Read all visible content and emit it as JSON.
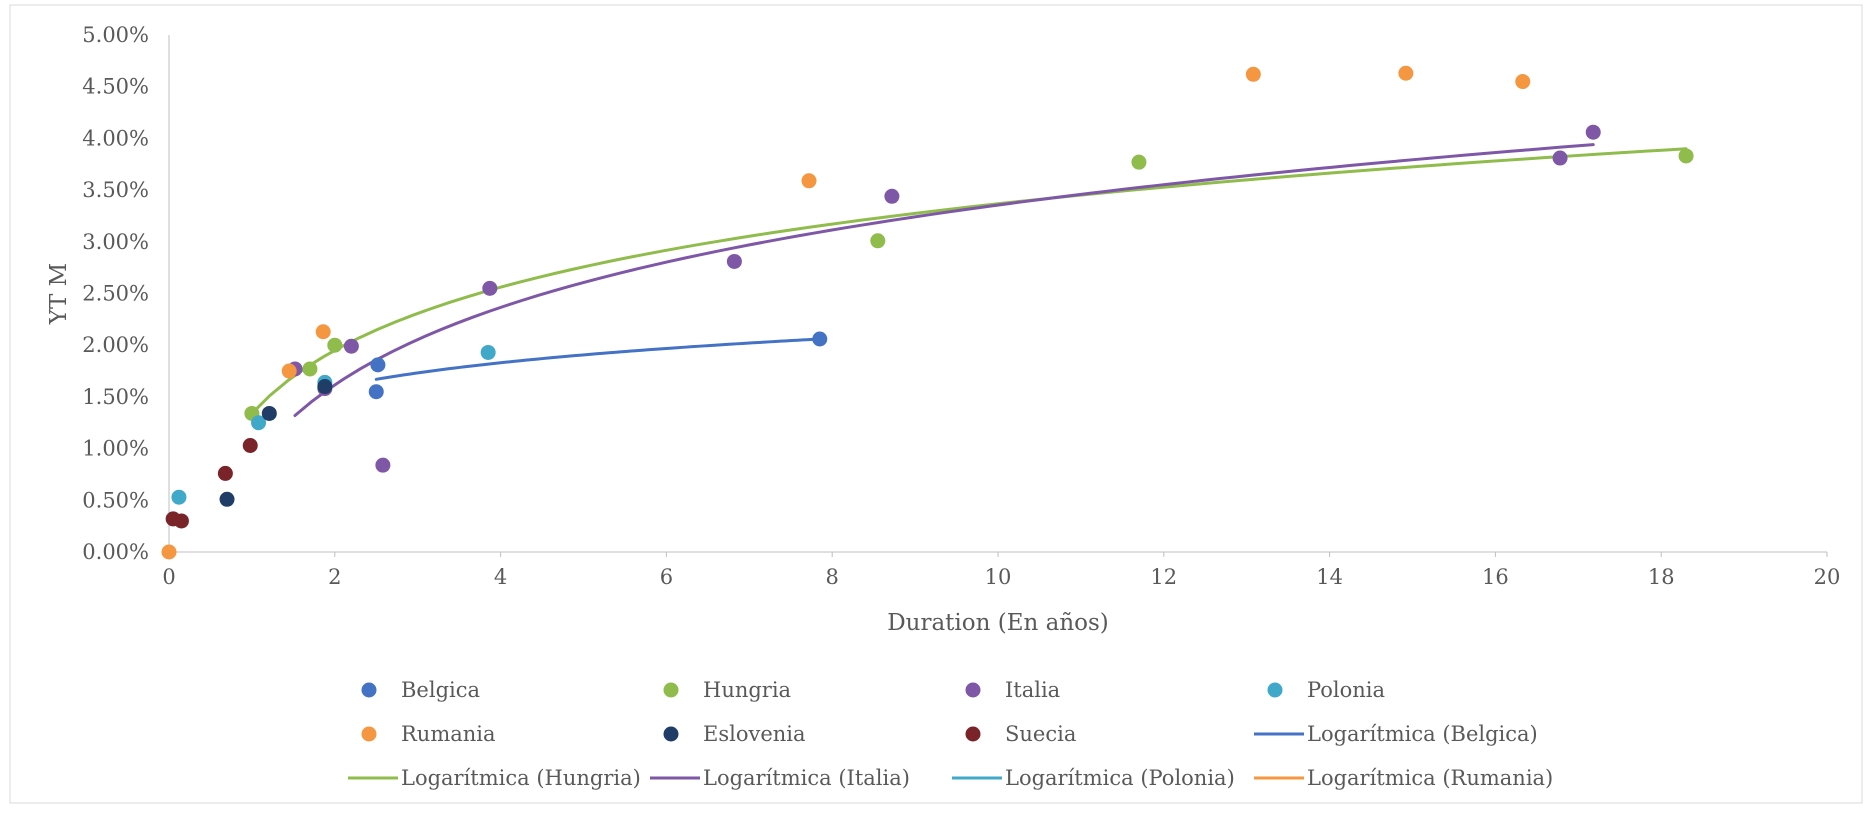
{
  "chart_data": {
    "type": "scatter",
    "xlabel": "Duration (En años)",
    "ylabel": "YT M",
    "xlim": [
      0,
      20
    ],
    "ylim": [
      0,
      0.05
    ],
    "x_ticks": [
      "0",
      "2",
      "4",
      "6",
      "8",
      "10",
      "12",
      "14",
      "16",
      "18",
      "20"
    ],
    "y_ticks": [
      "0.00%",
      "0.50%",
      "1.00%",
      "1.50%",
      "2.00%",
      "2.50%",
      "3.00%",
      "3.50%",
      "4.00%",
      "4.50%",
      "5.00%"
    ],
    "grid": false,
    "legend_position": "bottom",
    "series": [
      {
        "name": "Belgica",
        "color": "#4472C4",
        "points": [
          [
            2.5,
            0.0155
          ],
          [
            2.52,
            0.0181
          ],
          [
            7.85,
            0.0206
          ]
        ]
      },
      {
        "name": "Hungria",
        "color": "#8FBC4B",
        "points": [
          [
            1.0,
            0.0134
          ],
          [
            1.7,
            0.0177
          ],
          [
            2.0,
            0.02
          ],
          [
            8.55,
            0.0301
          ],
          [
            11.7,
            0.0377
          ],
          [
            18.3,
            0.0383
          ]
        ]
      },
      {
        "name": "Italia",
        "color": "#7E57A6",
        "points": [
          [
            1.52,
            0.0177
          ],
          [
            1.88,
            0.0158
          ],
          [
            2.2,
            0.0199
          ],
          [
            2.58,
            0.0084
          ],
          [
            3.87,
            0.0255
          ],
          [
            6.82,
            0.0281
          ],
          [
            8.72,
            0.0344
          ],
          [
            16.78,
            0.0381
          ],
          [
            17.18,
            0.0406
          ]
        ]
      },
      {
        "name": "Polonia",
        "color": "#40A9C9",
        "points": [
          [
            0.12,
            0.0053
          ],
          [
            1.08,
            0.0125
          ],
          [
            1.88,
            0.0164
          ],
          [
            3.85,
            0.0193
          ]
        ]
      },
      {
        "name": "Rumania",
        "color": "#F59640",
        "points": [
          [
            0.0,
            0.0
          ],
          [
            1.45,
            0.0175
          ],
          [
            1.86,
            0.0213
          ],
          [
            7.72,
            0.0359
          ],
          [
            13.08,
            0.0462
          ],
          [
            14.92,
            0.0463
          ],
          [
            16.33,
            0.0455
          ]
        ]
      },
      {
        "name": "Eslovenia",
        "color": "#1F3D66",
        "points": [
          [
            0.7,
            0.0051
          ],
          [
            1.21,
            0.0134
          ],
          [
            1.88,
            0.016
          ]
        ]
      },
      {
        "name": "Suecia",
        "color": "#7A2328",
        "points": [
          [
            0.05,
            0.0032
          ],
          [
            0.15,
            0.003
          ],
          [
            0.68,
            0.0076
          ],
          [
            0.98,
            0.0103
          ]
        ]
      }
    ],
    "trendlines": [
      {
        "name": "Logarítmica (Belgica)",
        "color": "#4472C4",
        "x_range": [
          2.5,
          7.85
        ],
        "y_range": [
          0.0167,
          0.0206
        ]
      },
      {
        "name": "Logarítmica (Hungria)",
        "color": "#8FBC4B",
        "x_range": [
          1.0,
          18.3
        ],
        "y_range": [
          0.0134,
          0.039
        ]
      },
      {
        "name": "Logarítmica (Italia)",
        "color": "#7E57A6",
        "x_range": [
          1.52,
          17.18
        ],
        "y_range": [
          0.0132,
          0.0394
        ]
      },
      {
        "name": "Logarítmica (Polonia)",
        "color": "#40A9C9",
        "x_range": null,
        "y_range": null
      },
      {
        "name": "Logarítmica (Rumania)",
        "color": "#F59640",
        "x_range": null,
        "y_range": null
      }
    ],
    "legend": [
      {
        "label": "Belgica",
        "kind": "marker",
        "color": "#4472C4"
      },
      {
        "label": "Hungria",
        "kind": "marker",
        "color": "#8FBC4B"
      },
      {
        "label": "Italia",
        "kind": "marker",
        "color": "#7E57A6"
      },
      {
        "label": "Polonia",
        "kind": "marker",
        "color": "#40A9C9"
      },
      {
        "label": "Rumania",
        "kind": "marker",
        "color": "#F59640"
      },
      {
        "label": "Eslovenia",
        "kind": "marker",
        "color": "#1F3D66"
      },
      {
        "label": "Suecia",
        "kind": "marker",
        "color": "#7A2328"
      },
      {
        "label": "Logarítmica (Belgica)",
        "kind": "line",
        "color": "#4472C4"
      },
      {
        "label": "Logarítmica (Hungria)",
        "kind": "line",
        "color": "#8FBC4B"
      },
      {
        "label": "Logarítmica (Italia)",
        "kind": "line",
        "color": "#7E57A6"
      },
      {
        "label": "Logarítmica (Polonia)",
        "kind": "line",
        "color": "#40A9C9"
      },
      {
        "label": "Logarítmica (Rumania)",
        "kind": "line",
        "color": "#F59640"
      }
    ]
  }
}
